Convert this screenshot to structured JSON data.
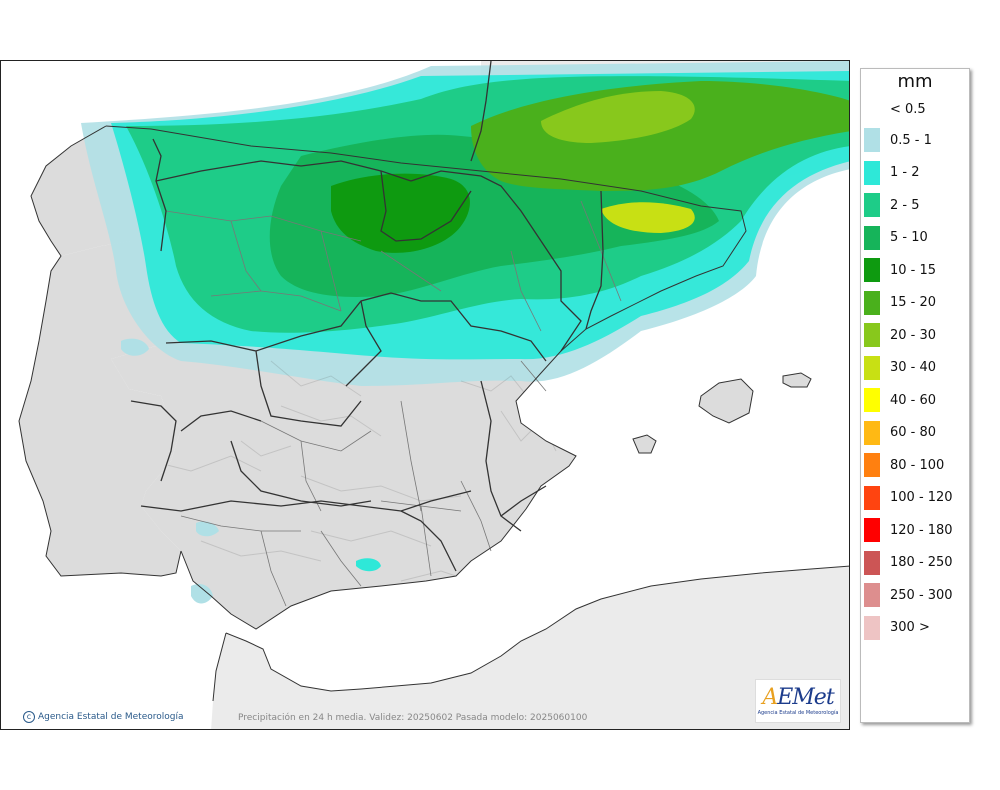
{
  "map": {
    "caption": "Precipitación en 24 h media. Validez: 20250602 Pasada modelo: 2025060100",
    "copyright": "Agencia Estatal de Meteorología",
    "colors": {
      "sea": "#ffffff",
      "land": "#dcdcdc",
      "land_outside": "#ebebeb",
      "border": "#333333",
      "province": "#777777"
    }
  },
  "logo": {
    "word": "AEMet",
    "subtitle": "Agencia Estatal de Meteorología"
  },
  "legend": {
    "unit": "mm",
    "under": "< 0.5",
    "classes": [
      {
        "label": "0.5 - 1",
        "color": "#b0e0e6"
      },
      {
        "label": "1 - 2",
        "color": "#2ee8d8"
      },
      {
        "label": "2 - 5",
        "color": "#1ecc88"
      },
      {
        "label": "5 - 10",
        "color": "#16b45a"
      },
      {
        "label": "10 - 15",
        "color": "#0e9a10"
      },
      {
        "label": "15 - 20",
        "color": "#4ab01c"
      },
      {
        "label": "20 - 30",
        "color": "#88c81c"
      },
      {
        "label": "30 - 40",
        "color": "#c8e014"
      },
      {
        "label": "40 - 60",
        "color": "#ffff00"
      },
      {
        "label": "60 - 80",
        "color": "#ffb914"
      },
      {
        "label": "80 - 100",
        "color": "#ff8010"
      },
      {
        "label": "100 - 120",
        "color": "#ff4410"
      },
      {
        "label": "120 - 180",
        "color": "#ff0000"
      },
      {
        "label": "180 - 250",
        "color": "#cc5555"
      },
      {
        "label": "250 - 300",
        "color": "#dd8e8e"
      },
      {
        "label": "300 >",
        "color": "#eec4c4"
      }
    ]
  }
}
